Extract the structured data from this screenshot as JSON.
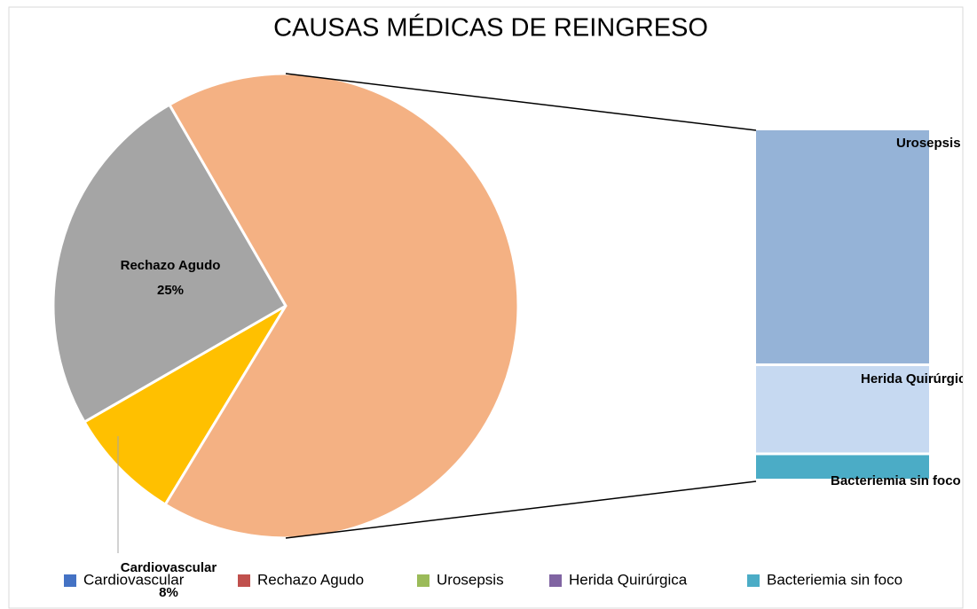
{
  "chart_data": {
    "type": "pie-of-bar",
    "title": "CAUSAS MÉDICAS DE REINGRESO",
    "categories": [
      "Cardiovascular",
      "Rechazo Agudo",
      "Urosepsis",
      "Herida Quirúrgica",
      "Bacteriemia sin foco"
    ],
    "values": [
      8,
      25,
      45,
      17,
      5
    ],
    "value_labels": [
      "8%",
      "25%",
      null,
      null,
      null
    ],
    "colors": [
      "#ffc000",
      "#a5a5a5",
      "#95b3d7",
      "#c6d9f1",
      "#4bacc6"
    ],
    "other_color": "#f4b183",
    "legend_colors": [
      "#4472c4",
      "#c0504d",
      "#9bbb59",
      "#8064a2",
      "#4bacc6"
    ],
    "legend": "bottom"
  }
}
